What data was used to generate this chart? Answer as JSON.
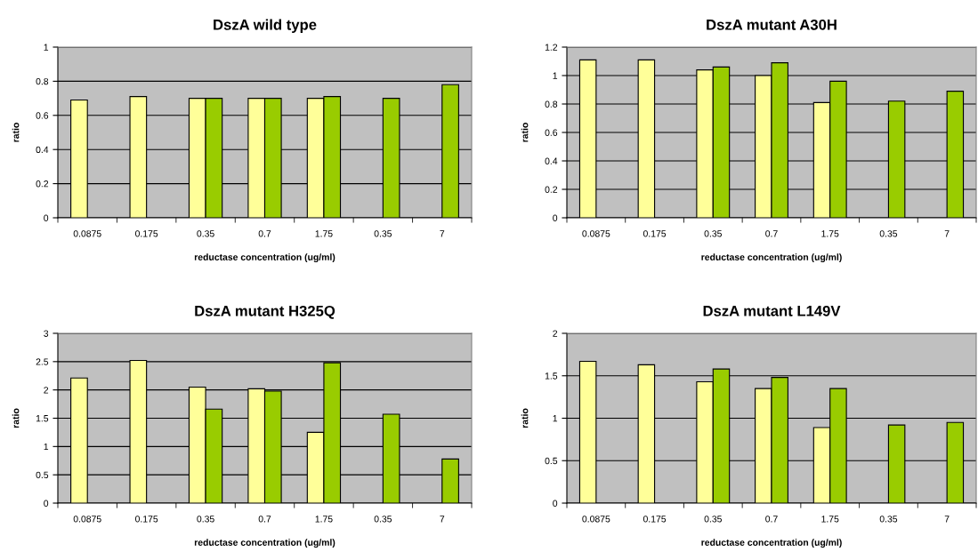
{
  "chart_data": [
    {
      "type": "bar",
      "title": "DszA wild type",
      "xlabel": "reductase concentration (ug/ml)",
      "ylabel": "ratio",
      "categories": [
        "0.0875",
        "0.175",
        "0.35",
        "0.7",
        "1.75",
        "0.35",
        "7"
      ],
      "series": [
        {
          "color": "#ffff99",
          "values": [
            0.69,
            0.71,
            0.7,
            0.7,
            0.7,
            null,
            null
          ]
        },
        {
          "color": "#99cc00",
          "values": [
            null,
            null,
            0.7,
            0.7,
            0.71,
            0.7,
            0.78
          ]
        }
      ],
      "ylim": [
        0,
        1
      ],
      "yticks": [
        0,
        0.2,
        0.4,
        0.6,
        0.8,
        1
      ],
      "grid": "y"
    },
    {
      "type": "bar",
      "title": "DszA mutant A30H",
      "xlabel": "reductase concentration (ug/ml)",
      "ylabel": "ratio",
      "categories": [
        "0.0875",
        "0.175",
        "0.35",
        "0.7",
        "1.75",
        "0.35",
        "7"
      ],
      "series": [
        {
          "color": "#ffff99",
          "values": [
            1.11,
            1.11,
            1.04,
            1.0,
            0.81,
            null,
            null
          ]
        },
        {
          "color": "#99cc00",
          "values": [
            null,
            null,
            1.06,
            1.09,
            0.96,
            0.82,
            0.89
          ]
        }
      ],
      "ylim": [
        0,
        1.2
      ],
      "yticks": [
        0,
        0.2,
        0.4,
        0.6,
        0.8,
        1,
        1.2
      ],
      "grid": "y"
    },
    {
      "type": "bar",
      "title": "DszA mutant H325Q",
      "xlabel": "reductase concentration (ug/ml)",
      "ylabel": "ratio",
      "categories": [
        "0.0875",
        "0.175",
        "0.35",
        "0.7",
        "1.75",
        "0.35",
        "7"
      ],
      "series": [
        {
          "color": "#ffff99",
          "values": [
            2.21,
            2.52,
            2.05,
            2.02,
            1.25,
            null,
            null
          ]
        },
        {
          "color": "#99cc00",
          "values": [
            null,
            null,
            1.66,
            1.98,
            2.48,
            1.57,
            0.78
          ]
        }
      ],
      "ylim": [
        0,
        3
      ],
      "yticks": [
        0,
        0.5,
        1,
        1.5,
        2,
        2.5,
        3
      ],
      "grid": "y"
    },
    {
      "type": "bar",
      "title": "DszA mutant L149V",
      "xlabel": "reductase concentration (ug/ml)",
      "ylabel": "ratio",
      "categories": [
        "0.0875",
        "0.175",
        "0.35",
        "0.7",
        "1.75",
        "0.35",
        "7"
      ],
      "series": [
        {
          "color": "#ffff99",
          "values": [
            1.67,
            1.63,
            1.43,
            1.35,
            0.89,
            null,
            null
          ]
        },
        {
          "color": "#99cc00",
          "values": [
            null,
            null,
            1.58,
            1.48,
            1.35,
            0.92,
            0.95
          ]
        }
      ],
      "ylim": [
        0,
        2
      ],
      "yticks": [
        0,
        0.5,
        1,
        1.5,
        2
      ],
      "grid": "y"
    }
  ]
}
